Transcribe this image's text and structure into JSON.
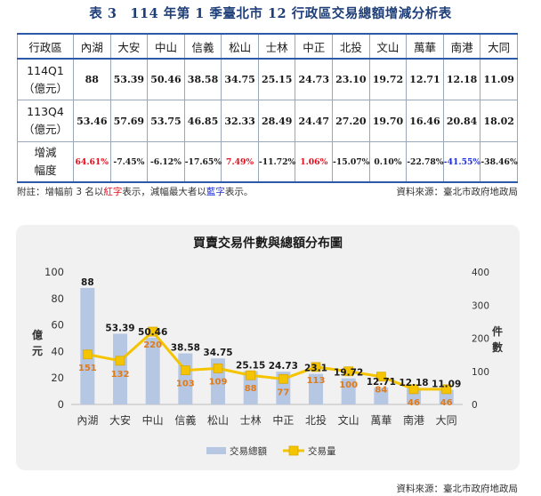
{
  "table": {
    "title": "表 3　114 年第 1 季臺北市 12 行政區交易總額增減分析表",
    "corner": "行政區",
    "districts": [
      "內湖",
      "大安",
      "中山",
      "信義",
      "松山",
      "士林",
      "中正",
      "北投",
      "文山",
      "萬華",
      "南港",
      "大同"
    ],
    "rows": [
      {
        "label1": "114Q1",
        "label2": "（億元）",
        "values": [
          "88",
          "53.39",
          "50.46",
          "38.58",
          "34.75",
          "25.15",
          "24.73",
          "23.10",
          "19.72",
          "12.71",
          "12.18",
          "11.09"
        ]
      },
      {
        "label1": "113Q4",
        "label2": "（億元）",
        "values": [
          "53.46",
          "57.69",
          "53.75",
          "46.85",
          "32.33",
          "28.49",
          "24.47",
          "27.20",
          "19.70",
          "16.46",
          "20.84",
          "18.02"
        ]
      }
    ],
    "change": {
      "label1": "增減",
      "label2": "幅度",
      "values": [
        "64.61%",
        "-7.45%",
        "-6.12%",
        "-17.65%",
        "7.49%",
        "-11.72%",
        "1.06%",
        "-15.07%",
        "0.10%",
        "-22.78%",
        "-41.55%",
        "-38.46%"
      ],
      "colors": [
        "red",
        "",
        "",
        "",
        "red",
        "",
        "red",
        "",
        "",
        "",
        "blue",
        ""
      ]
    }
  },
  "note": {
    "prefix": "附註：增幅前 3 名以",
    "red_word": "紅字",
    "middle": "表示，減幅最大者以",
    "blue_word": "藍字",
    "suffix": "表示。"
  },
  "source_top": "資料來源：臺北市政府地政局",
  "source_bottom": "資料來源：臺北市政府地政局",
  "colors": {
    "bar": "#b6c7e3",
    "line": "#f5c400",
    "bar_label": "#1a1a1a",
    "line_label": "#e07b1a",
    "highlight_red": "#e0101e",
    "highlight_blue": "#1e2fd8",
    "table_rule": "#2a5aa8"
  },
  "chart_data": {
    "type": "bar",
    "title": "買賣交易件數與總額分布圖",
    "categories": [
      "內湖",
      "大安",
      "中山",
      "信義",
      "松山",
      "士林",
      "中正",
      "北投",
      "文山",
      "萬華",
      "南港",
      "大同"
    ],
    "series": [
      {
        "name": "交易總額",
        "type": "bar",
        "axis": "left",
        "values": [
          88,
          53.39,
          50.46,
          38.58,
          34.75,
          25.15,
          24.73,
          23.1,
          19.72,
          12.71,
          12.18,
          11.09
        ],
        "labels": [
          "88",
          "53.39",
          "50.46",
          "38.58",
          "34.75",
          "25.15",
          "24.73",
          "23.1",
          "19.72",
          "12.71",
          "12.18",
          "11.09"
        ]
      },
      {
        "name": "交易量",
        "type": "line",
        "axis": "right",
        "values": [
          151,
          132,
          220,
          103,
          109,
          88,
          77,
          113,
          100,
          84,
          46,
          46
        ],
        "labels": [
          "151",
          "132",
          "220",
          "103",
          "109",
          "88",
          "77",
          "113",
          "100",
          "84",
          "46",
          "46"
        ]
      }
    ],
    "y_left": {
      "label": "億元",
      "ylim": [
        0,
        100
      ],
      "ticks": [
        0,
        20,
        40,
        60,
        80,
        100
      ]
    },
    "y_right": {
      "label": "件數",
      "ylim": [
        0,
        400
      ],
      "ticks": [
        0,
        100,
        200,
        300,
        400
      ]
    },
    "legend_position": "bottom",
    "grid": false
  }
}
